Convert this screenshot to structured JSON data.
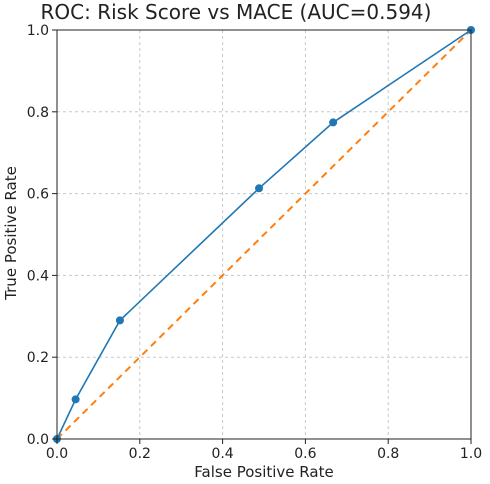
{
  "chart_data": {
    "type": "line",
    "title": "ROC: Risk Score vs MACE (AUC=0.594)",
    "xlabel": "False Positive Rate",
    "ylabel": "True Positive Rate",
    "xlim": [
      0.0,
      1.0
    ],
    "ylim": [
      0.0,
      1.0
    ],
    "grid": true,
    "x_ticks": [
      "0.0",
      "0.2",
      "0.4",
      "0.6",
      "0.8",
      "1.0"
    ],
    "y_ticks": [
      "0.0",
      "0.2",
      "0.4",
      "0.6",
      "0.8",
      "1.0"
    ],
    "series": [
      {
        "style": "solid-with-markers",
        "color": "#1f77b4",
        "x": [
          0.0,
          0.045,
          0.152,
          0.488,
          0.667,
          1.0
        ],
        "y": [
          0.0,
          0.097,
          0.29,
          0.613,
          0.774,
          1.0
        ]
      },
      {
        "style": "dashed",
        "color": "#ff7f0e",
        "x": [
          0.0,
          1.0
        ],
        "y": [
          0.0,
          1.0
        ]
      }
    ]
  }
}
